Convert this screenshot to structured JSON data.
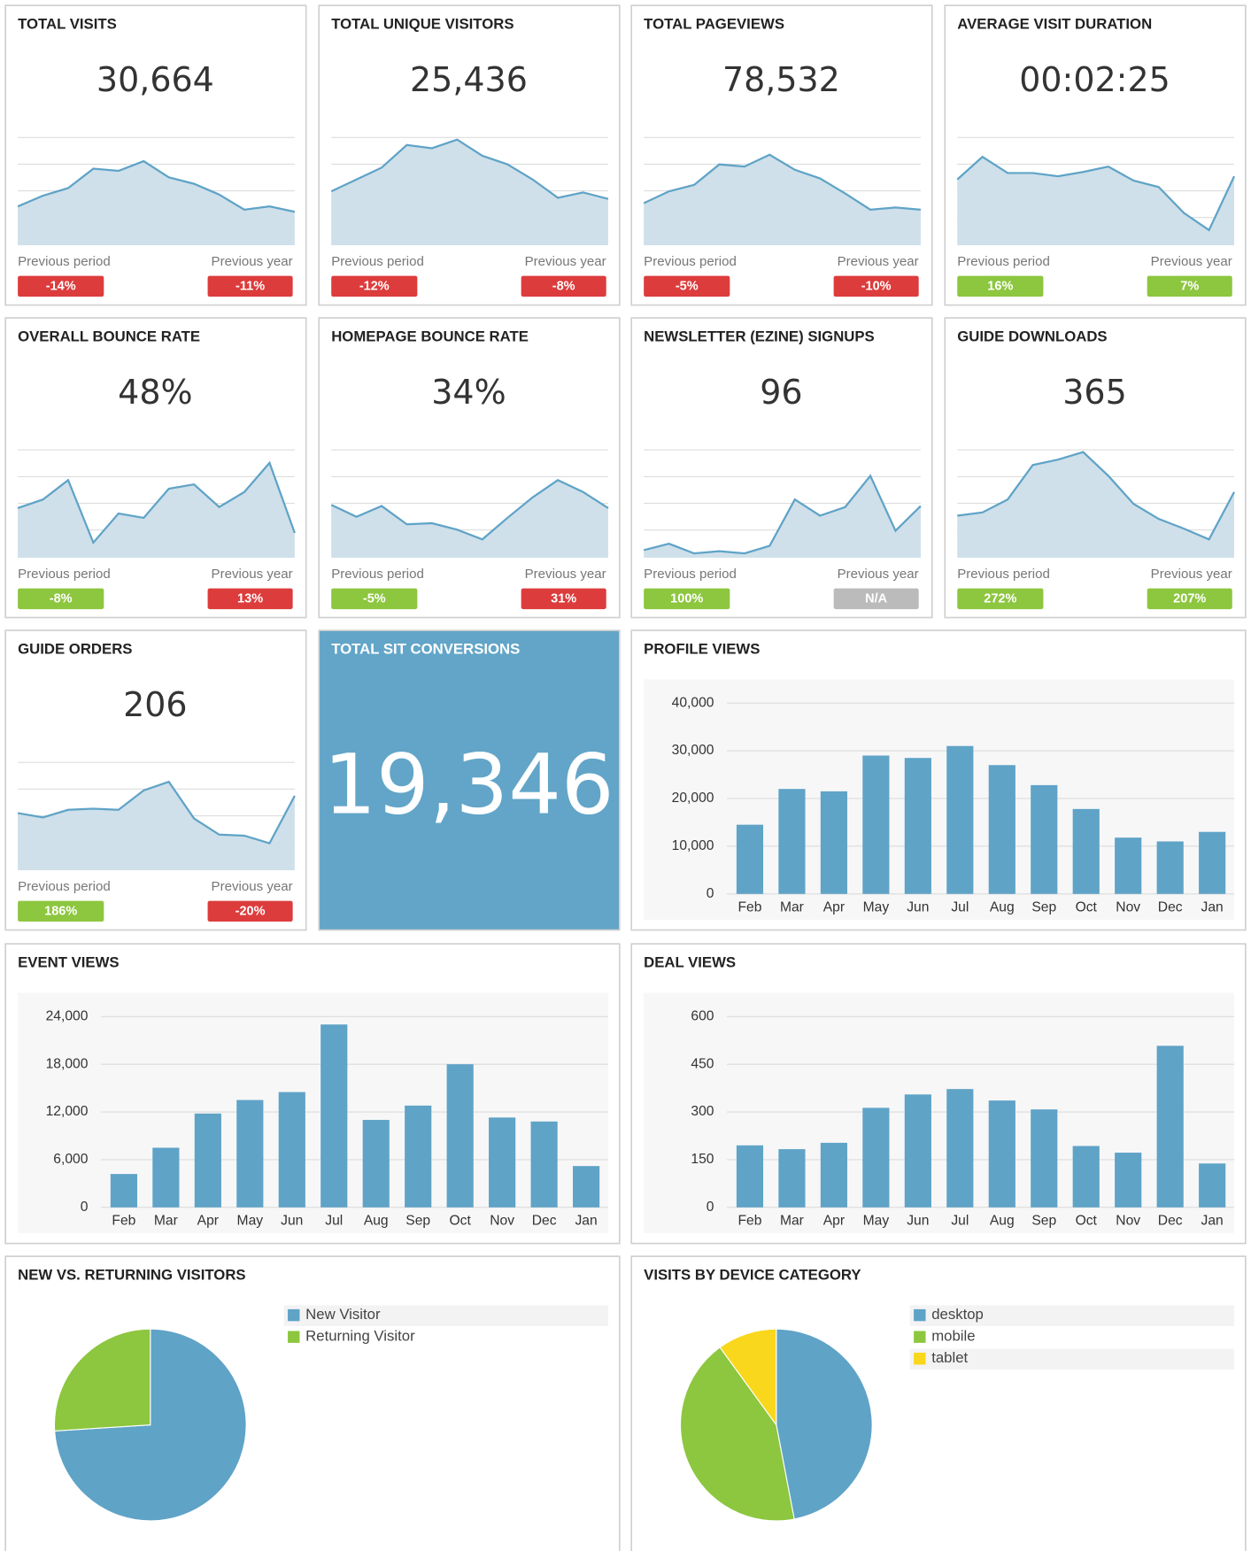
{
  "tiles": [
    {
      "title": "TOTAL VISITS",
      "value": "30,664",
      "sparkline": {
        "type": "line",
        "values": [
          36,
          46,
          53,
          71,
          69,
          78,
          63,
          57,
          47,
          33,
          36,
          31
        ],
        "ylim": [
          0,
          100
        ]
      },
      "previous_period": {
        "label": "Previous period",
        "change": "-14%",
        "color": "#dd3c3c"
      },
      "previous_year": {
        "label": "Previous year",
        "change": "-11%",
        "color": "#dd3c3c"
      }
    },
    {
      "title": "TOTAL UNIQUE VISITORS",
      "value": "25,436",
      "sparkline": {
        "type": "line",
        "values": [
          50,
          61,
          72,
          93,
          90,
          98,
          83,
          75,
          61,
          44,
          49,
          43
        ],
        "ylim": [
          0,
          100
        ]
      },
      "previous_period": {
        "label": "Previous period",
        "change": "-12%",
        "color": "#dd3c3c"
      },
      "previous_year": {
        "label": "Previous year",
        "change": "-8%",
        "color": "#dd3c3c"
      }
    },
    {
      "title": "TOTAL PAGEVIEWS",
      "value": "78,532",
      "sparkline": {
        "type": "line",
        "values": [
          39,
          50,
          56,
          75,
          73,
          84,
          70,
          62,
          48,
          33,
          35,
          33
        ],
        "ylim": [
          0,
          100
        ]
      },
      "previous_period": {
        "label": "Previous period",
        "change": "-5%",
        "color": "#dd3c3c"
      },
      "previous_year": {
        "label": "Previous year",
        "change": "-10%",
        "color": "#dd3c3c"
      }
    },
    {
      "title": "AVERAGE VISIT DURATION",
      "value": "00:02:25",
      "sparkline": {
        "type": "line",
        "values": [
          61,
          82,
          67,
          67,
          64,
          68,
          73,
          60,
          54,
          30,
          14,
          64
        ],
        "ylim": [
          0,
          100
        ]
      },
      "previous_period": {
        "label": "Previous period",
        "change": "16%",
        "color": "#8dc63f"
      },
      "previous_year": {
        "label": "Previous year",
        "change": "7%",
        "color": "#8dc63f"
      }
    },
    {
      "title": "OVERALL BOUNCE RATE",
      "value": "48%",
      "sparkline": {
        "type": "line",
        "values": [
          46,
          54,
          72,
          14,
          41,
          37,
          64,
          68,
          47,
          61,
          88,
          23
        ],
        "ylim": [
          0,
          100
        ]
      },
      "previous_period": {
        "label": "Previous period",
        "change": "-8%",
        "color": "#8dc63f"
      },
      "previous_year": {
        "label": "Previous year",
        "change": "13%",
        "color": "#dd3c3c"
      }
    },
    {
      "title": "HOMEPAGE BOUNCE RATE",
      "value": "34%",
      "sparkline": {
        "type": "line",
        "values": [
          49,
          38,
          48,
          31,
          32,
          26,
          17,
          37,
          56,
          72,
          61,
          46
        ],
        "ylim": [
          0,
          100
        ]
      },
      "previous_period": {
        "label": "Previous period",
        "change": "-5%",
        "color": "#8dc63f"
      },
      "previous_year": {
        "label": "Previous year",
        "change": "31%",
        "color": "#dd3c3c"
      }
    },
    {
      "title": "NEWSLETTER (EZINE) SIGNUPS",
      "value": "96",
      "sparkline": {
        "type": "line",
        "values": [
          7,
          13,
          4,
          6,
          4,
          11,
          54,
          39,
          47,
          76,
          25,
          48
        ],
        "ylim": [
          0,
          100
        ]
      },
      "previous_period": {
        "label": "Previous period",
        "change": "100%",
        "color": "#8dc63f"
      },
      "previous_year": {
        "label": "Previous year",
        "change": "N/A",
        "color": "#bbbbbb"
      }
    },
    {
      "title": "GUIDE DOWNLOADS",
      "value": "365",
      "sparkline": {
        "type": "line",
        "values": [
          39,
          42,
          54,
          86,
          91,
          98,
          76,
          50,
          36,
          27,
          17,
          61
        ],
        "ylim": [
          0,
          100
        ]
      },
      "previous_period": {
        "label": "Previous period",
        "change": "272%",
        "color": "#8dc63f"
      },
      "previous_year": {
        "label": "Previous year",
        "change": "207%",
        "color": "#8dc63f"
      }
    },
    {
      "title": "GUIDE ORDERS",
      "value": "206",
      "sparkline": {
        "type": "line",
        "values": [
          53,
          49,
          56,
          57,
          56,
          74,
          82,
          48,
          33,
          32,
          25,
          69
        ],
        "ylim": [
          0,
          100
        ]
      },
      "previous_period": {
        "label": "Previous period",
        "change": "186%",
        "color": "#8dc63f"
      },
      "previous_year": {
        "label": "Previous year",
        "change": "-20%",
        "color": "#dd3c3c"
      }
    }
  ],
  "highlight": {
    "title": "TOTAL SIT CONVERSIONS",
    "value": "19,346",
    "color": "#62a5c8"
  },
  "chart_data": [
    {
      "type": "bar",
      "title": "PROFILE VIEWS",
      "categories": [
        "Feb",
        "Mar",
        "Apr",
        "May",
        "Jun",
        "Jul",
        "Aug",
        "Sep",
        "Oct",
        "Nov",
        "Dec",
        "Jan"
      ],
      "values": [
        14500,
        22000,
        21500,
        29000,
        28500,
        31000,
        27000,
        22800,
        17800,
        11800,
        11000,
        13000
      ],
      "color": "#5fa3c7",
      "ylim": [
        0,
        40000
      ],
      "yticks": [
        0,
        {
          "value": 10000,
          "label": "10,000"
        },
        {
          "value": 20000,
          "label": "20,000"
        },
        {
          "value": 30000,
          "label": "30,000"
        },
        {
          "value": 40000,
          "label": "40,000"
        }
      ],
      "grid": true
    },
    {
      "type": "bar",
      "title": "EVENT VIEWS",
      "categories": [
        "Feb",
        "Mar",
        "Apr",
        "May",
        "Jun",
        "Jul",
        "Aug",
        "Sep",
        "Oct",
        "Nov",
        "Dec",
        "Jan"
      ],
      "values": [
        4200,
        7500,
        11800,
        13500,
        14500,
        23000,
        11000,
        12800,
        18000,
        11300,
        10800,
        5200
      ],
      "color": "#5fa3c7",
      "ylim": [
        0,
        24000
      ],
      "yticks": [
        0,
        {
          "value": 6000,
          "label": "6,000"
        },
        {
          "value": 12000,
          "label": "12,000"
        },
        {
          "value": 18000,
          "label": "18,000"
        },
        {
          "value": 24000,
          "label": "24,000"
        }
      ],
      "grid": true
    },
    {
      "type": "bar",
      "title": "DEAL VIEWS",
      "categories": [
        "Feb",
        "Mar",
        "Apr",
        "May",
        "Jun",
        "Jul",
        "Aug",
        "Sep",
        "Oct",
        "Nov",
        "Dec",
        "Jan"
      ],
      "values": [
        195,
        183,
        203,
        313,
        355,
        372,
        336,
        308,
        193,
        172,
        508,
        138
      ],
      "color": "#5fa3c7",
      "ylim": [
        0,
        600
      ],
      "yticks": [
        0,
        150,
        300,
        450,
        600
      ],
      "grid": true
    },
    {
      "type": "pie",
      "title": "NEW VS. RETURNING VISITORS",
      "categories": [
        "New Visitor",
        "Returning Visitor"
      ],
      "values": [
        74,
        26
      ],
      "colors": [
        "#5fa3c7",
        "#8dc63f"
      ],
      "legend": "right"
    },
    {
      "type": "pie",
      "title": "VISITS BY DEVICE CATEGORY",
      "categories": [
        "desktop",
        "mobile",
        "tablet"
      ],
      "values": [
        47,
        43,
        10
      ],
      "colors": [
        "#5fa3c7",
        "#8dc63f",
        "#f9d71c"
      ],
      "legend": "right"
    }
  ]
}
